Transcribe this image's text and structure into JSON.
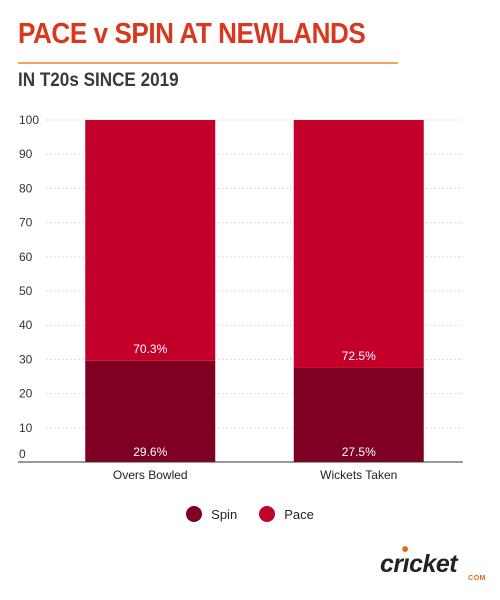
{
  "header": {
    "title": "PACE v SPIN AT NEWLANDS",
    "subtitle": "IN T20s SINCE 2019"
  },
  "colors": {
    "title": "#d9381e",
    "spin": "#800024",
    "pace": "#c30029",
    "accent_rule": "#f0a45c"
  },
  "legend": {
    "items": [
      {
        "label": "Spin",
        "color": "#800024"
      },
      {
        "label": "Pace",
        "color": "#c30029"
      }
    ]
  },
  "chart_data": {
    "type": "bar",
    "stacked": true,
    "categories": [
      "Overs Bowled",
      "Wickets Taken"
    ],
    "series": [
      {
        "name": "Spin",
        "values": [
          29.6,
          27.5
        ],
        "labels": [
          "29.6%",
          "27.5%"
        ]
      },
      {
        "name": "Pace",
        "values": [
          70.3,
          72.5
        ],
        "labels": [
          "70.3%",
          "72.5%"
        ]
      }
    ],
    "ylim": [
      0,
      100
    ],
    "yticks": [
      "0",
      "10",
      "20",
      "30",
      "40",
      "50",
      "60",
      "70",
      "80",
      "90",
      "100"
    ],
    "grid": true,
    "legend_position": "bottom"
  },
  "logo": {
    "text": "cricket",
    "subtext": "COM",
    "icon": "cricket-com-logo"
  }
}
